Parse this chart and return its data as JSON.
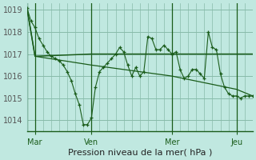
{
  "bg_color": "#c0e8e0",
  "grid_color": "#88bbaa",
  "line_color": "#1a5c1a",
  "ylim": [
    1013.5,
    1019.3
  ],
  "xlim": [
    0,
    28
  ],
  "xlabel": "Pression niveau de la mer( hPa )",
  "xtick_positions": [
    1,
    8,
    18,
    26
  ],
  "xtick_labels": [
    "Mar",
    "Ven",
    "Mer",
    "Jeu"
  ],
  "vline_positions": [
    0,
    1,
    8,
    18,
    26
  ],
  "ytick_values": [
    1014,
    1015,
    1016,
    1017,
    1018,
    1019
  ],
  "line1_x": [
    0,
    0.5,
    1,
    1.5,
    2,
    2.5,
    3,
    3.5,
    4,
    4.5,
    5,
    5.5,
    6,
    6.5,
    7,
    7.5,
    8,
    8.5,
    9,
    9.5,
    10,
    10.5,
    11,
    11.5,
    12,
    12.5,
    13,
    13.5,
    14,
    14.5,
    15,
    15.5,
    16,
    16.5,
    17,
    17.5,
    18,
    18.5,
    19,
    19.5,
    20,
    20.5,
    21,
    21.5,
    22,
    22.5,
    23,
    23.5,
    24,
    24.5,
    25,
    25.5,
    26,
    26.5,
    27,
    27.5,
    28
  ],
  "line1_y": [
    1019.1,
    1018.5,
    1018.2,
    1017.7,
    1017.4,
    1017.1,
    1016.9,
    1016.8,
    1016.7,
    1016.5,
    1016.2,
    1015.8,
    1015.2,
    1014.7,
    1013.8,
    1013.8,
    1014.1,
    1015.5,
    1016.2,
    1016.4,
    1016.6,
    1016.8,
    1017.0,
    1017.3,
    1017.1,
    1016.5,
    1016.0,
    1016.4,
    1016.0,
    1016.2,
    1017.8,
    1017.7,
    1017.2,
    1017.2,
    1017.4,
    1017.2,
    1017.0,
    1017.1,
    1016.3,
    1015.9,
    1016.0,
    1016.3,
    1016.3,
    1016.1,
    1015.9,
    1018.0,
    1017.3,
    1017.2,
    1016.1,
    1015.5,
    1015.2,
    1015.1,
    1015.1,
    1015.0,
    1015.1,
    1015.1,
    1015.1
  ],
  "line2_x": [
    0,
    1,
    8,
    18,
    26,
    28
  ],
  "line2_y": [
    1019.1,
    1016.9,
    1017.0,
    1017.0,
    1017.0,
    1017.0
  ],
  "line3_x": [
    0,
    1,
    8,
    18,
    26,
    28
  ],
  "line3_y": [
    1019.1,
    1016.9,
    1016.5,
    1016.0,
    1015.4,
    1015.1
  ],
  "title_fontsize": 8,
  "tick_fontsize": 7,
  "minor_vticks": [
    0,
    1,
    2,
    3,
    4,
    5,
    6,
    7,
    8,
    9,
    10,
    11,
    12,
    13,
    14,
    15,
    16,
    17,
    18,
    19,
    20,
    21,
    22,
    23,
    24,
    25,
    26,
    27,
    28
  ]
}
